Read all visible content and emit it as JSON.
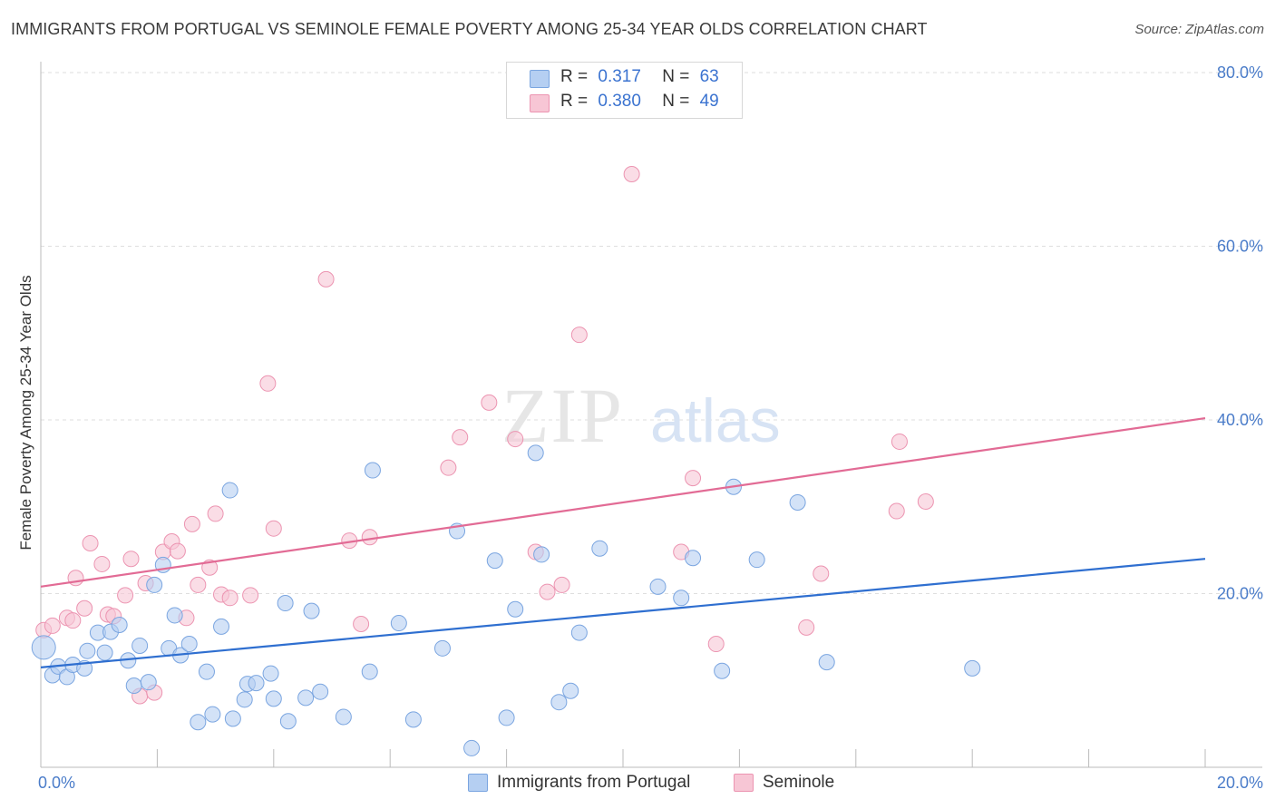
{
  "title": "IMMIGRANTS FROM PORTUGAL VS SEMINOLE FEMALE POVERTY AMONG 25-34 YEAR OLDS CORRELATION CHART",
  "source": "Source: ZipAtlas.com",
  "watermark": {
    "zip": "ZIP",
    "atlas": "atlas"
  },
  "legend": {
    "rows": [
      {
        "r_label": "R =",
        "r_value": "0.317",
        "n_label": "N =",
        "n_value": "63",
        "fill": "#b5cff2",
        "stroke": "#7aa5e0"
      },
      {
        "r_label": "R =",
        "r_value": "0.380",
        "n_label": "N =",
        "n_value": "49",
        "fill": "#f7c6d5",
        "stroke": "#ec94b1"
      }
    ]
  },
  "bottom_legend": {
    "series1": "Immigrants from Portugal",
    "series2": "Seminole"
  },
  "chart_data": {
    "type": "scatter",
    "title": "IMMIGRANTS FROM PORTUGAL VS SEMINOLE FEMALE POVERTY AMONG 25-34 YEAR OLDS CORRELATION CHART",
    "xlabel": "",
    "ylabel": "Female Poverty Among 25-34 Year Olds",
    "xlim": [
      0,
      20
    ],
    "ylim": [
      0,
      80
    ],
    "x_ticks": [
      "0.0%",
      "20.0%"
    ],
    "y_ticks": [
      "20.0%",
      "40.0%",
      "60.0%",
      "80.0%"
    ],
    "grid": true,
    "legend_position": "top-center",
    "colors": {
      "series1_fill": "#b5cff2",
      "series1_stroke": "#7aa5e0",
      "series1_line": "#2f6fd0",
      "series2_fill": "#f7c6d5",
      "series2_stroke": "#ec94b1",
      "series2_line": "#e26b95"
    },
    "series": [
      {
        "name": "Immigrants from Portugal",
        "trend": {
          "x": [
            0,
            20
          ],
          "y": [
            11.5,
            24.0
          ]
        },
        "points": [
          [
            0.05,
            13.8
          ],
          [
            0.2,
            10.6
          ],
          [
            0.3,
            11.6
          ],
          [
            0.45,
            10.4
          ],
          [
            0.55,
            11.8
          ],
          [
            0.75,
            11.4
          ],
          [
            0.8,
            13.4
          ],
          [
            0.98,
            15.5
          ],
          [
            1.1,
            13.2
          ],
          [
            1.2,
            15.6
          ],
          [
            1.35,
            16.4
          ],
          [
            1.5,
            12.3
          ],
          [
            1.6,
            9.4
          ],
          [
            1.7,
            14.0
          ],
          [
            1.85,
            9.8
          ],
          [
            1.95,
            21.0
          ],
          [
            2.1,
            23.3
          ],
          [
            2.2,
            13.7
          ],
          [
            2.3,
            17.5
          ],
          [
            2.4,
            12.9
          ],
          [
            2.55,
            14.2
          ],
          [
            2.7,
            5.2
          ],
          [
            2.85,
            11.0
          ],
          [
            2.95,
            6.1
          ],
          [
            3.1,
            16.2
          ],
          [
            3.25,
            31.9
          ],
          [
            3.3,
            5.6
          ],
          [
            3.5,
            7.8
          ],
          [
            3.55,
            9.6
          ],
          [
            3.7,
            9.7
          ],
          [
            3.95,
            10.8
          ],
          [
            4.0,
            7.9
          ],
          [
            4.2,
            18.9
          ],
          [
            4.25,
            5.3
          ],
          [
            4.55,
            8.0
          ],
          [
            4.65,
            18.0
          ],
          [
            4.8,
            8.7
          ],
          [
            5.2,
            5.8
          ],
          [
            5.65,
            11.0
          ],
          [
            5.7,
            34.2
          ],
          [
            6.15,
            16.6
          ],
          [
            6.4,
            5.5
          ],
          [
            6.9,
            13.7
          ],
          [
            7.15,
            27.2
          ],
          [
            7.4,
            2.2
          ],
          [
            7.8,
            23.8
          ],
          [
            8.0,
            5.7
          ],
          [
            8.15,
            18.2
          ],
          [
            8.5,
            36.2
          ],
          [
            8.6,
            24.5
          ],
          [
            8.9,
            7.5
          ],
          [
            9.1,
            8.8
          ],
          [
            9.25,
            15.5
          ],
          [
            9.6,
            25.2
          ],
          [
            10.6,
            20.8
          ],
          [
            11.0,
            19.5
          ],
          [
            11.2,
            24.1
          ],
          [
            11.7,
            11.1
          ],
          [
            11.9,
            32.3
          ],
          [
            12.3,
            23.9
          ],
          [
            13.0,
            30.5
          ],
          [
            13.5,
            12.1
          ],
          [
            16.0,
            11.4
          ]
        ]
      },
      {
        "name": "Seminole",
        "trend": {
          "x": [
            0,
            20
          ],
          "y": [
            20.8,
            40.2
          ]
        },
        "points": [
          [
            0.05,
            15.8
          ],
          [
            0.2,
            16.3
          ],
          [
            0.45,
            17.2
          ],
          [
            0.55,
            16.9
          ],
          [
            0.6,
            21.8
          ],
          [
            0.75,
            18.3
          ],
          [
            0.85,
            25.8
          ],
          [
            1.05,
            23.4
          ],
          [
            1.15,
            17.6
          ],
          [
            1.25,
            17.4
          ],
          [
            1.45,
            19.8
          ],
          [
            1.55,
            24.0
          ],
          [
            1.7,
            8.2
          ],
          [
            1.8,
            21.2
          ],
          [
            1.95,
            8.6
          ],
          [
            2.1,
            24.8
          ],
          [
            2.25,
            26.0
          ],
          [
            2.35,
            24.9
          ],
          [
            2.5,
            17.2
          ],
          [
            2.6,
            28.0
          ],
          [
            2.7,
            21.0
          ],
          [
            2.9,
            23.0
          ],
          [
            3.0,
            29.2
          ],
          [
            3.1,
            19.9
          ],
          [
            3.25,
            19.5
          ],
          [
            3.6,
            19.8
          ],
          [
            3.9,
            44.2
          ],
          [
            4.0,
            27.5
          ],
          [
            4.9,
            56.2
          ],
          [
            5.3,
            26.1
          ],
          [
            5.5,
            16.5
          ],
          [
            5.65,
            26.5
          ],
          [
            7.0,
            34.5
          ],
          [
            7.2,
            38.0
          ],
          [
            7.7,
            42.0
          ],
          [
            8.15,
            37.8
          ],
          [
            8.5,
            24.8
          ],
          [
            8.7,
            20.2
          ],
          [
            8.95,
            21.0
          ],
          [
            9.25,
            49.8
          ],
          [
            10.15,
            68.3
          ],
          [
            11.0,
            24.8
          ],
          [
            11.2,
            33.3
          ],
          [
            11.6,
            14.2
          ],
          [
            13.15,
            16.1
          ],
          [
            13.4,
            22.3
          ],
          [
            14.7,
            29.5
          ],
          [
            14.75,
            37.5
          ],
          [
            15.2,
            30.6
          ]
        ]
      }
    ]
  }
}
